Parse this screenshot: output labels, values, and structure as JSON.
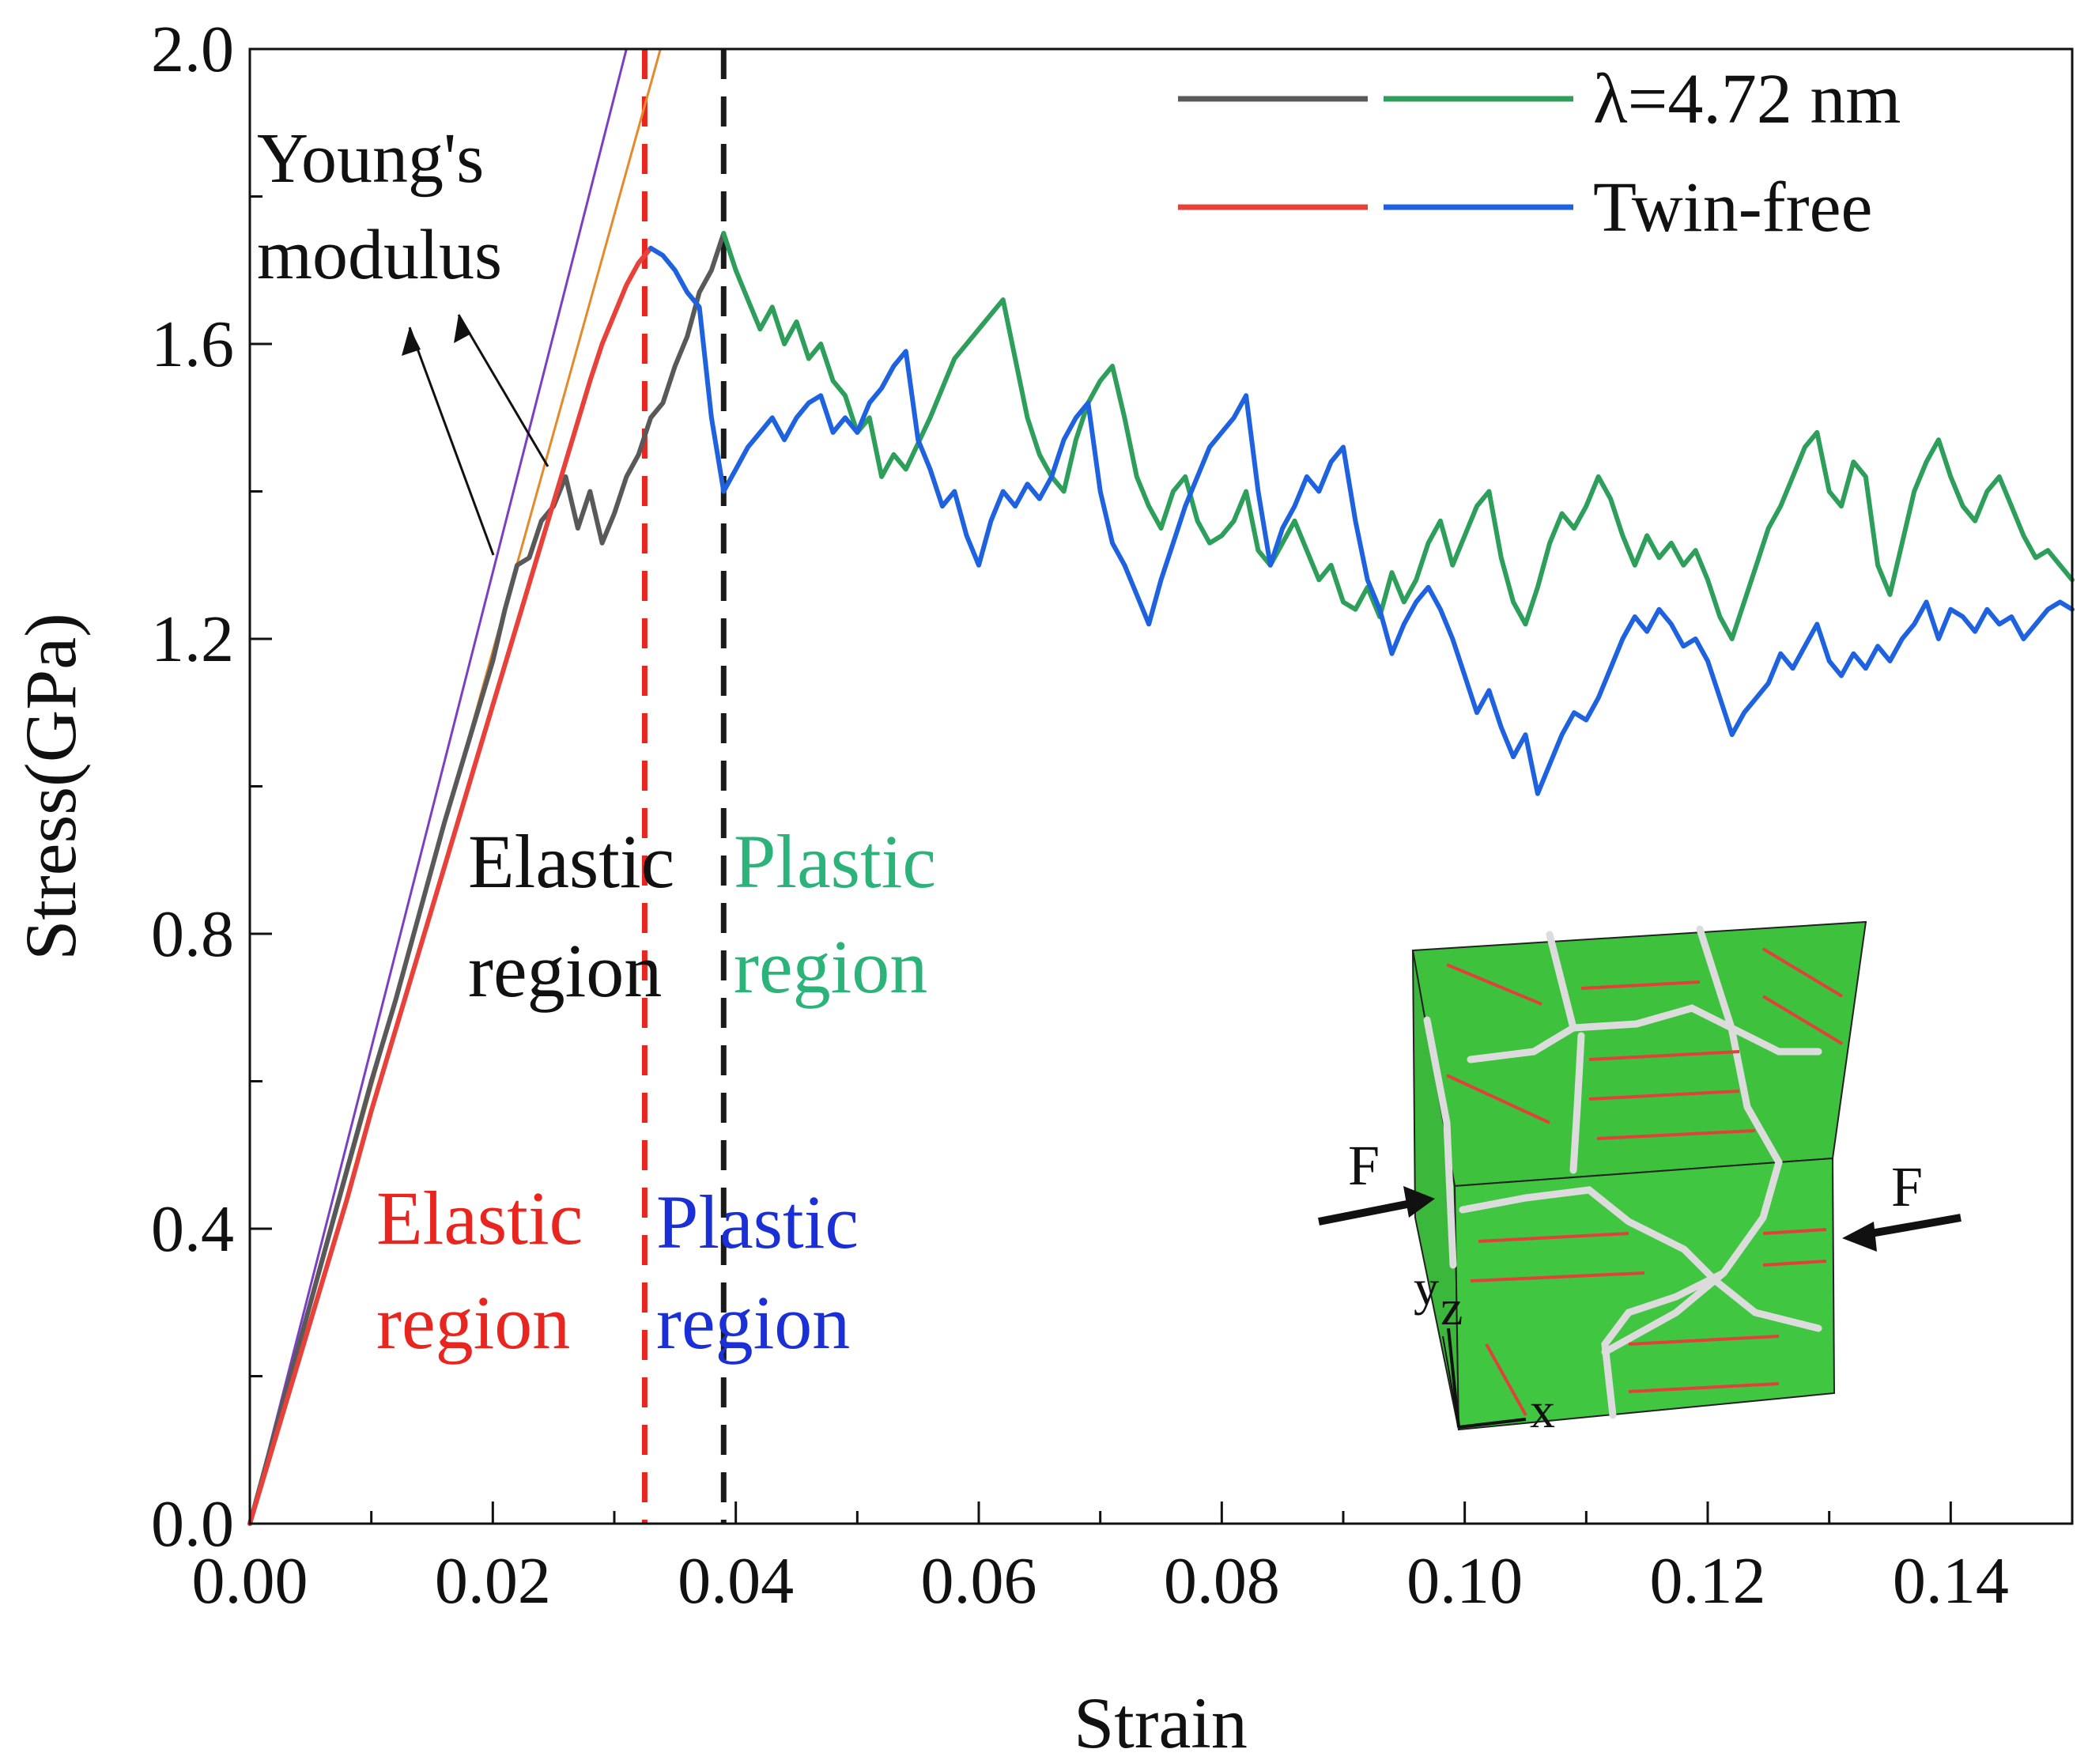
{
  "chart_data": {
    "type": "line",
    "title": "",
    "xlabel": "Strain",
    "ylabel": "Stress(GPa)",
    "xlim": [
      0,
      0.15
    ],
    "ylim": [
      0,
      2.0
    ],
    "x_ticks": [
      0.0,
      0.02,
      0.04,
      0.06,
      0.08,
      0.1,
      0.12,
      0.14
    ],
    "x_tick_labels": [
      "0.00",
      "0.02",
      "0.04",
      "0.06",
      "0.08",
      "0.10",
      "0.12",
      "0.14"
    ],
    "y_ticks": [
      0.0,
      0.4,
      0.8,
      1.2,
      1.6,
      2.0
    ],
    "y_tick_labels": [
      "0.0",
      "0.4",
      "0.8",
      "1.2",
      "1.6",
      "2.0"
    ],
    "legend": {
      "position": "top-right",
      "entries": [
        {
          "label": "λ=4.72 nm",
          "colors": [
            "#595959",
            "#2e9e5b"
          ]
        },
        {
          "label": "Twin-free",
          "colors": [
            "#e8413a",
            "#1f62e0"
          ]
        }
      ]
    },
    "series": [
      {
        "name": "λ=4.72 nm elastic",
        "color": "#595959",
        "x": [
          0,
          0.002,
          0.004,
          0.006,
          0.008,
          0.01,
          0.012,
          0.014,
          0.016,
          0.018,
          0.02,
          0.021,
          0.022,
          0.023,
          0.024,
          0.025,
          0.026,
          0.027,
          0.028,
          0.029,
          0.03,
          0.031,
          0.032,
          0.033,
          0.034,
          0.035,
          0.036,
          0.037,
          0.038,
          0.039
        ],
        "y": [
          0,
          0.12,
          0.24,
          0.36,
          0.48,
          0.6,
          0.71,
          0.83,
          0.95,
          1.06,
          1.17,
          1.24,
          1.3,
          1.31,
          1.36,
          1.38,
          1.42,
          1.35,
          1.4,
          1.33,
          1.37,
          1.42,
          1.45,
          1.5,
          1.52,
          1.57,
          1.61,
          1.67,
          1.7,
          1.75
        ]
      },
      {
        "name": "λ=4.72 nm plastic",
        "color": "#2e9e5b",
        "x": [
          0.039,
          0.04,
          0.041,
          0.042,
          0.043,
          0.044,
          0.045,
          0.046,
          0.047,
          0.048,
          0.049,
          0.05,
          0.051,
          0.052,
          0.053,
          0.054,
          0.056,
          0.058,
          0.06,
          0.062,
          0.063,
          0.064,
          0.065,
          0.066,
          0.067,
          0.068,
          0.069,
          0.07,
          0.071,
          0.072,
          0.073,
          0.074,
          0.075,
          0.076,
          0.077,
          0.078,
          0.079,
          0.08,
          0.081,
          0.082,
          0.083,
          0.084,
          0.085,
          0.086,
          0.087,
          0.088,
          0.089,
          0.09,
          0.091,
          0.092,
          0.093,
          0.094,
          0.095,
          0.096,
          0.097,
          0.098,
          0.099,
          0.1,
          0.101,
          0.102,
          0.103,
          0.104,
          0.105,
          0.106,
          0.107,
          0.108,
          0.109,
          0.11,
          0.111,
          0.112,
          0.113,
          0.114,
          0.115,
          0.116,
          0.117,
          0.118,
          0.119,
          0.12,
          0.121,
          0.122,
          0.123,
          0.124,
          0.125,
          0.126,
          0.127,
          0.128,
          0.129,
          0.13,
          0.131,
          0.132,
          0.133,
          0.134,
          0.135,
          0.136,
          0.137,
          0.138,
          0.139,
          0.14,
          0.141,
          0.142,
          0.143,
          0.144,
          0.145,
          0.146,
          0.147,
          0.148,
          0.149,
          0.15
        ],
        "y": [
          1.75,
          1.7,
          1.66,
          1.62,
          1.65,
          1.6,
          1.63,
          1.58,
          1.6,
          1.55,
          1.53,
          1.48,
          1.5,
          1.42,
          1.45,
          1.43,
          1.5,
          1.58,
          1.62,
          1.66,
          1.58,
          1.5,
          1.45,
          1.42,
          1.4,
          1.47,
          1.52,
          1.55,
          1.57,
          1.5,
          1.42,
          1.38,
          1.35,
          1.4,
          1.42,
          1.36,
          1.33,
          1.34,
          1.36,
          1.4,
          1.32,
          1.3,
          1.33,
          1.36,
          1.32,
          1.28,
          1.3,
          1.25,
          1.24,
          1.27,
          1.23,
          1.29,
          1.25,
          1.28,
          1.33,
          1.36,
          1.3,
          1.34,
          1.38,
          1.4,
          1.31,
          1.25,
          1.22,
          1.27,
          1.33,
          1.37,
          1.35,
          1.38,
          1.42,
          1.39,
          1.34,
          1.3,
          1.34,
          1.31,
          1.33,
          1.3,
          1.32,
          1.28,
          1.23,
          1.2,
          1.25,
          1.3,
          1.35,
          1.38,
          1.42,
          1.46,
          1.48,
          1.4,
          1.38,
          1.44,
          1.42,
          1.3,
          1.26,
          1.33,
          1.4,
          1.44,
          1.47,
          1.42,
          1.38,
          1.36,
          1.4,
          1.42,
          1.38,
          1.34,
          1.31,
          1.32,
          1.3,
          1.28
        ]
      },
      {
        "name": "Twin-free elastic",
        "color": "#e8413a",
        "x": [
          0,
          0.002,
          0.004,
          0.006,
          0.008,
          0.01,
          0.012,
          0.014,
          0.016,
          0.018,
          0.02,
          0.022,
          0.024,
          0.026,
          0.028,
          0.029,
          0.03,
          0.031,
          0.032,
          0.033
        ],
        "y": [
          0,
          0.11,
          0.22,
          0.33,
          0.44,
          0.56,
          0.67,
          0.78,
          0.89,
          1.0,
          1.11,
          1.22,
          1.33,
          1.44,
          1.55,
          1.6,
          1.64,
          1.68,
          1.71,
          1.73
        ]
      },
      {
        "name": "Twin-free plastic",
        "color": "#1f62e0",
        "x": [
          0.033,
          0.034,
          0.035,
          0.036,
          0.037,
          0.038,
          0.039,
          0.04,
          0.041,
          0.042,
          0.043,
          0.044,
          0.045,
          0.046,
          0.047,
          0.048,
          0.049,
          0.05,
          0.051,
          0.052,
          0.053,
          0.054,
          0.055,
          0.056,
          0.057,
          0.058,
          0.059,
          0.06,
          0.061,
          0.062,
          0.063,
          0.064,
          0.065,
          0.066,
          0.067,
          0.068,
          0.069,
          0.07,
          0.071,
          0.072,
          0.073,
          0.074,
          0.075,
          0.076,
          0.077,
          0.078,
          0.079,
          0.08,
          0.081,
          0.082,
          0.083,
          0.084,
          0.085,
          0.086,
          0.087,
          0.088,
          0.089,
          0.09,
          0.091,
          0.092,
          0.093,
          0.094,
          0.095,
          0.096,
          0.097,
          0.098,
          0.099,
          0.1,
          0.101,
          0.102,
          0.103,
          0.104,
          0.105,
          0.106,
          0.107,
          0.108,
          0.109,
          0.11,
          0.111,
          0.112,
          0.113,
          0.114,
          0.115,
          0.116,
          0.117,
          0.118,
          0.119,
          0.12,
          0.121,
          0.122,
          0.123,
          0.124,
          0.125,
          0.126,
          0.127,
          0.128,
          0.129,
          0.13,
          0.131,
          0.132,
          0.133,
          0.134,
          0.135,
          0.136,
          0.137,
          0.138,
          0.139,
          0.14,
          0.141,
          0.142,
          0.143,
          0.144,
          0.145,
          0.146,
          0.147,
          0.148,
          0.149,
          0.15
        ],
        "y": [
          1.73,
          1.72,
          1.7,
          1.67,
          1.65,
          1.5,
          1.4,
          1.43,
          1.46,
          1.48,
          1.5,
          1.47,
          1.5,
          1.52,
          1.53,
          1.48,
          1.5,
          1.48,
          1.52,
          1.54,
          1.57,
          1.59,
          1.47,
          1.43,
          1.38,
          1.4,
          1.34,
          1.3,
          1.36,
          1.4,
          1.38,
          1.41,
          1.39,
          1.42,
          1.47,
          1.5,
          1.52,
          1.4,
          1.33,
          1.3,
          1.26,
          1.22,
          1.28,
          1.33,
          1.38,
          1.42,
          1.46,
          1.48,
          1.5,
          1.53,
          1.4,
          1.3,
          1.35,
          1.38,
          1.42,
          1.4,
          1.44,
          1.46,
          1.36,
          1.28,
          1.24,
          1.18,
          1.22,
          1.25,
          1.27,
          1.24,
          1.2,
          1.15,
          1.1,
          1.13,
          1.08,
          1.04,
          1.07,
          0.99,
          1.03,
          1.07,
          1.1,
          1.09,
          1.12,
          1.16,
          1.2,
          1.23,
          1.21,
          1.24,
          1.22,
          1.19,
          1.2,
          1.17,
          1.12,
          1.07,
          1.1,
          1.12,
          1.14,
          1.18,
          1.16,
          1.19,
          1.22,
          1.17,
          1.15,
          1.18,
          1.16,
          1.19,
          1.17,
          1.2,
          1.22,
          1.25,
          1.2,
          1.24,
          1.23,
          1.21,
          1.24,
          1.22,
          1.23,
          1.2,
          1.22,
          1.24,
          1.25,
          1.24
        ]
      }
    ],
    "reference_lines": [
      {
        "name": "Young's modulus fit 1",
        "color": "#7b3fc4",
        "x": [
          0,
          0.031
        ],
        "y": [
          0,
          2.0
        ]
      },
      {
        "name": "Young's modulus fit 2",
        "color": "#e58a2b",
        "x": [
          0,
          0.0338
        ],
        "y": [
          0,
          2.0
        ]
      }
    ],
    "vertical_lines": [
      {
        "name": "Twin-free yield",
        "color": "#e8251f",
        "x": 0.0325,
        "style": "dashed"
      },
      {
        "name": "λ=4.72 nm yield",
        "color": "#1a1a1a",
        "x": 0.039,
        "style": "dashed"
      }
    ],
    "annotations": {
      "youngs_modulus": {
        "line1": "Young's",
        "line2": "modulus",
        "color": "#111111",
        "arrow_targets": [
          [
            0.0197,
            1.31
          ],
          [
            0.0245,
            1.44
          ]
        ]
      },
      "elastic_black": {
        "line1": "Elastic",
        "line2": "region",
        "color": "#111111"
      },
      "plastic_green": {
        "line1": "Plastic",
        "line2": "region",
        "color": "#2bb37a"
      },
      "elastic_red": {
        "line1": "Elastic",
        "line2": "region",
        "color": "#e8251f"
      },
      "plastic_blue": {
        "line1": "Plastic",
        "line2": "region",
        "color": "#1b2fd6"
      }
    },
    "inset": {
      "description_labels": {
        "force_left": "F",
        "force_right": "F",
        "axis_y": "y",
        "axis_z": "z",
        "axis_x": "x"
      },
      "face_color": "#3ec23e",
      "boundary_color": "#d9d9d9",
      "twin_color": "#e0413a"
    }
  }
}
